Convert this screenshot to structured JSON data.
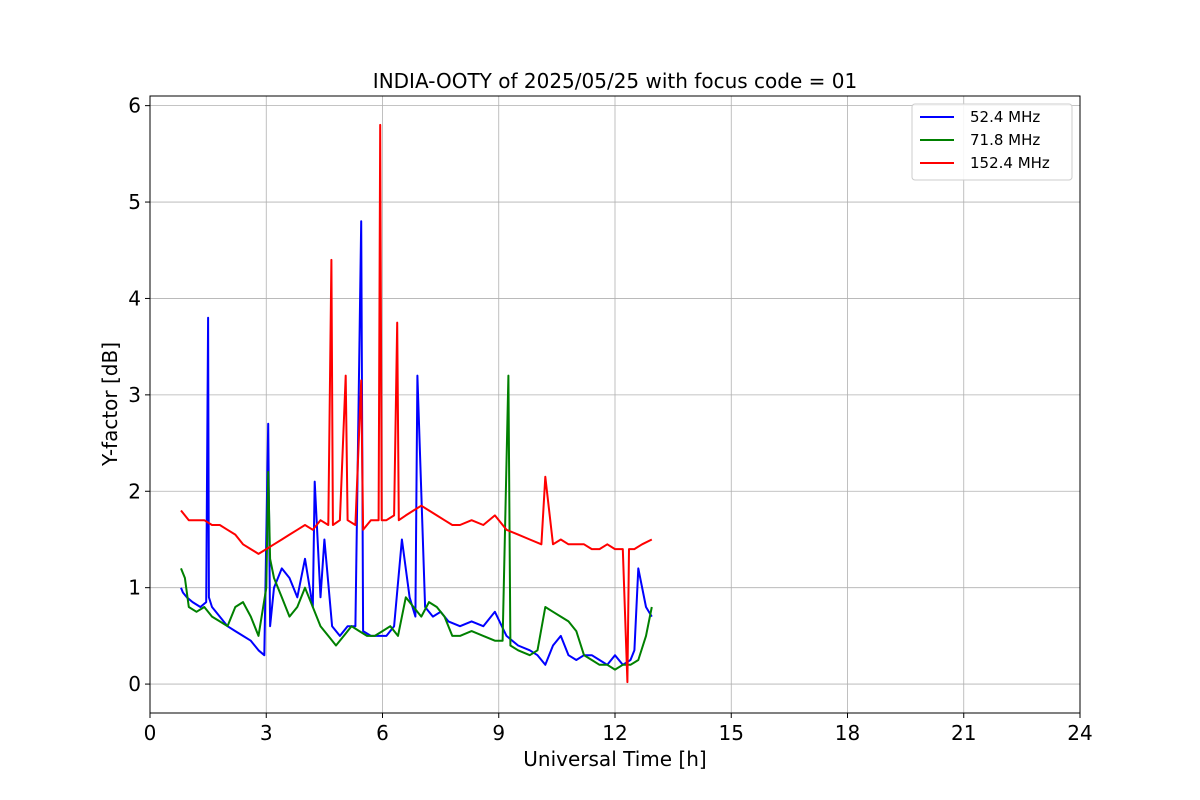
{
  "chart_data": {
    "type": "line",
    "title": "INDIA-OOTY of 2025/05/25 with focus code = 01",
    "xlabel": "Universal Time [h]",
    "ylabel": "Y-factor [dB]",
    "xlim": [
      0,
      24
    ],
    "ylim": [
      -0.3,
      6.1
    ],
    "xticks": [
      0,
      3,
      6,
      9,
      12,
      15,
      18,
      21,
      24
    ],
    "yticks": [
      0,
      1,
      2,
      3,
      4,
      5,
      6
    ],
    "grid": true,
    "legend_position": "top-right",
    "series": [
      {
        "name": " 52.4 MHz",
        "color": "#0000ff",
        "x": [
          0.8,
          0.85,
          0.95,
          1.1,
          1.3,
          1.45,
          1.5,
          1.52,
          1.6,
          1.8,
          2.0,
          2.2,
          2.4,
          2.6,
          2.8,
          2.95,
          3.05,
          3.1,
          3.2,
          3.4,
          3.6,
          3.8,
          4.0,
          4.2,
          4.25,
          4.4,
          4.5,
          4.7,
          4.9,
          5.1,
          5.3,
          5.45,
          5.5,
          5.7,
          5.9,
          6.1,
          6.3,
          6.5,
          6.7,
          6.85,
          6.9,
          7.1,
          7.3,
          7.5,
          7.7,
          8.0,
          8.3,
          8.6,
          8.9,
          9.2,
          9.5,
          9.8,
          10.0,
          10.2,
          10.4,
          10.6,
          10.8,
          11.0,
          11.2,
          11.4,
          11.6,
          11.8,
          12.0,
          12.2,
          12.4,
          12.5,
          12.6,
          12.8,
          12.95
        ],
        "y": [
          1.0,
          0.95,
          0.9,
          0.85,
          0.8,
          0.85,
          3.8,
          0.9,
          0.8,
          0.7,
          0.6,
          0.55,
          0.5,
          0.45,
          0.35,
          0.3,
          2.7,
          0.6,
          1.0,
          1.2,
          1.1,
          0.9,
          1.3,
          0.8,
          2.1,
          0.9,
          1.5,
          0.6,
          0.5,
          0.6,
          0.6,
          4.8,
          0.55,
          0.5,
          0.5,
          0.5,
          0.6,
          1.5,
          0.9,
          0.7,
          3.2,
          0.8,
          0.7,
          0.75,
          0.65,
          0.6,
          0.65,
          0.6,
          0.75,
          0.5,
          0.4,
          0.35,
          0.3,
          0.2,
          0.4,
          0.5,
          0.3,
          0.25,
          0.3,
          0.3,
          0.25,
          0.2,
          0.3,
          0.2,
          0.25,
          0.35,
          1.2,
          0.8,
          0.7
        ]
      },
      {
        "name": " 71.8 MHz",
        "color": "#008000",
        "x": [
          0.8,
          0.9,
          1.0,
          1.2,
          1.4,
          1.6,
          1.8,
          2.0,
          2.2,
          2.4,
          2.6,
          2.8,
          3.0,
          3.05,
          3.1,
          3.2,
          3.4,
          3.6,
          3.8,
          4.0,
          4.2,
          4.4,
          4.6,
          4.8,
          5.0,
          5.2,
          5.4,
          5.6,
          5.8,
          6.0,
          6.2,
          6.4,
          6.6,
          6.8,
          7.0,
          7.2,
          7.4,
          7.6,
          7.8,
          8.0,
          8.3,
          8.6,
          8.9,
          9.1,
          9.25,
          9.3,
          9.5,
          9.8,
          10.0,
          10.2,
          10.4,
          10.6,
          10.8,
          11.0,
          11.2,
          11.4,
          11.6,
          11.8,
          12.0,
          12.2,
          12.4,
          12.6,
          12.8,
          12.95
        ],
        "y": [
          1.2,
          1.1,
          0.8,
          0.75,
          0.8,
          0.7,
          0.65,
          0.6,
          0.8,
          0.85,
          0.7,
          0.5,
          1.0,
          2.2,
          1.3,
          1.1,
          0.9,
          0.7,
          0.8,
          1.0,
          0.8,
          0.6,
          0.5,
          0.4,
          0.5,
          0.6,
          0.55,
          0.5,
          0.5,
          0.55,
          0.6,
          0.5,
          0.9,
          0.8,
          0.7,
          0.85,
          0.8,
          0.7,
          0.5,
          0.5,
          0.55,
          0.5,
          0.45,
          0.45,
          3.2,
          0.4,
          0.35,
          0.3,
          0.35,
          0.8,
          0.75,
          0.7,
          0.65,
          0.55,
          0.3,
          0.25,
          0.2,
          0.2,
          0.15,
          0.2,
          0.2,
          0.25,
          0.5,
          0.8
        ]
      },
      {
        "name": "152.4 MHz",
        "color": "#ff0000",
        "x": [
          0.8,
          1.0,
          1.2,
          1.4,
          1.6,
          1.8,
          2.0,
          2.2,
          2.4,
          2.6,
          2.8,
          3.0,
          3.2,
          3.4,
          3.6,
          3.8,
          4.0,
          4.2,
          4.4,
          4.6,
          4.68,
          4.72,
          4.9,
          5.05,
          5.1,
          5.3,
          5.45,
          5.5,
          5.7,
          5.9,
          5.94,
          5.98,
          6.1,
          6.3,
          6.38,
          6.42,
          6.6,
          6.8,
          7.0,
          7.2,
          7.4,
          7.6,
          7.8,
          8.0,
          8.3,
          8.6,
          8.9,
          9.2,
          9.5,
          9.8,
          10.1,
          10.2,
          10.4,
          10.6,
          10.8,
          11.0,
          11.2,
          11.4,
          11.6,
          11.8,
          12.0,
          12.2,
          12.32,
          12.36,
          12.5,
          12.7,
          12.95
        ],
        "y": [
          1.8,
          1.7,
          1.7,
          1.7,
          1.65,
          1.65,
          1.6,
          1.55,
          1.45,
          1.4,
          1.35,
          1.4,
          1.45,
          1.5,
          1.55,
          1.6,
          1.65,
          1.6,
          1.7,
          1.65,
          4.4,
          1.65,
          1.7,
          3.2,
          1.7,
          1.65,
          3.15,
          1.6,
          1.7,
          1.7,
          5.8,
          1.7,
          1.7,
          1.75,
          3.75,
          1.7,
          1.75,
          1.8,
          1.85,
          1.8,
          1.75,
          1.7,
          1.65,
          1.65,
          1.7,
          1.65,
          1.75,
          1.6,
          1.55,
          1.5,
          1.45,
          2.15,
          1.45,
          1.5,
          1.45,
          1.45,
          1.45,
          1.4,
          1.4,
          1.45,
          1.4,
          1.4,
          0.02,
          1.4,
          1.4,
          1.45,
          1.5
        ]
      }
    ]
  }
}
